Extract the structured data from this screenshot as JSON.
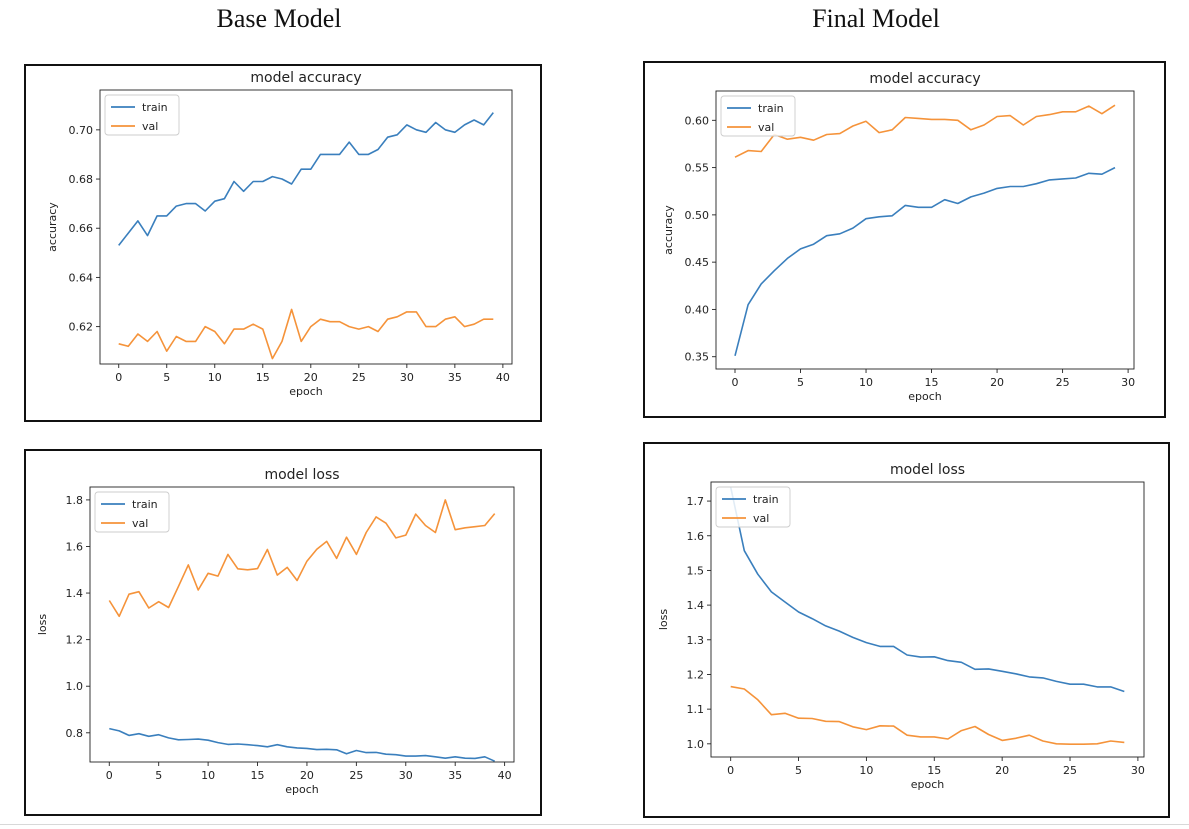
{
  "headers": {
    "left": "Base Model",
    "right": "Final Model"
  },
  "colors": {
    "train": "#3a7fbd",
    "val": "#f5933a"
  },
  "chart_data": [
    {
      "type": "line",
      "title": "model accuracy",
      "xlabel": "epoch",
      "ylabel": "accuracy",
      "xlim": [
        -1.95,
        40.95
      ],
      "ylim": [
        0.6048,
        0.7162
      ],
      "xticks": [
        0,
        5,
        10,
        15,
        20,
        25,
        30,
        35,
        40
      ],
      "yticks": [
        0.62,
        0.64,
        0.66,
        0.68,
        0.7
      ],
      "ytick_labels": [
        "0.62",
        "0.64",
        "0.66",
        "0.68",
        "0.70"
      ],
      "legend": "upper-left",
      "series": [
        {
          "name": "train",
          "x_start": 0,
          "values": [
            0.653,
            0.658,
            0.663,
            0.657,
            0.665,
            0.665,
            0.669,
            0.67,
            0.67,
            0.667,
            0.671,
            0.672,
            0.679,
            0.675,
            0.679,
            0.679,
            0.681,
            0.68,
            0.678,
            0.684,
            0.684,
            0.69,
            0.69,
            0.69,
            0.695,
            0.69,
            0.69,
            0.692,
            0.697,
            0.698,
            0.702,
            0.7,
            0.699,
            0.703,
            0.7,
            0.699,
            0.702,
            0.704,
            0.702,
            0.707
          ]
        },
        {
          "name": "val",
          "x_start": 0,
          "values": [
            0.613,
            0.612,
            0.617,
            0.614,
            0.618,
            0.61,
            0.616,
            0.614,
            0.614,
            0.62,
            0.618,
            0.613,
            0.619,
            0.619,
            0.621,
            0.619,
            0.607,
            0.614,
            0.627,
            0.614,
            0.62,
            0.623,
            0.622,
            0.622,
            0.62,
            0.619,
            0.62,
            0.618,
            0.623,
            0.624,
            0.626,
            0.626,
            0.62,
            0.62,
            0.623,
            0.624,
            0.62,
            0.621,
            0.623,
            0.623
          ]
        }
      ]
    },
    {
      "type": "line",
      "title": "model accuracy",
      "xlabel": "epoch",
      "ylabel": "accuracy",
      "xlim": [
        -1.45,
        30.45
      ],
      "ylim": [
        0.337,
        0.631
      ],
      "xticks": [
        0,
        5,
        10,
        15,
        20,
        25,
        30
      ],
      "yticks": [
        0.35,
        0.4,
        0.45,
        0.5,
        0.55,
        0.6
      ],
      "ytick_labels": [
        "0.35",
        "0.40",
        "0.45",
        "0.50",
        "0.55",
        "0.60"
      ],
      "legend": "upper-left",
      "series": [
        {
          "name": "train",
          "x_start": 0,
          "values": [
            0.351,
            0.405,
            0.427,
            0.441,
            0.454,
            0.464,
            0.469,
            0.478,
            0.48,
            0.486,
            0.496,
            0.498,
            0.499,
            0.51,
            0.508,
            0.508,
            0.516,
            0.512,
            0.519,
            0.523,
            0.528,
            0.53,
            0.53,
            0.533,
            0.537,
            0.538,
            0.539,
            0.544,
            0.543,
            0.55
          ]
        },
        {
          "name": "val",
          "x_start": 0,
          "values": [
            0.561,
            0.568,
            0.567,
            0.585,
            0.58,
            0.582,
            0.579,
            0.585,
            0.586,
            0.594,
            0.599,
            0.587,
            0.59,
            0.603,
            0.602,
            0.601,
            0.601,
            0.6,
            0.59,
            0.595,
            0.604,
            0.605,
            0.595,
            0.604,
            0.606,
            0.609,
            0.609,
            0.615,
            0.607,
            0.616
          ]
        }
      ]
    },
    {
      "type": "line",
      "title": "model loss",
      "xlabel": "epoch",
      "ylabel": "loss",
      "xlim": [
        -1.95,
        40.95
      ],
      "ylim": [
        0.6746,
        1.8554
      ],
      "xticks": [
        0,
        5,
        10,
        15,
        20,
        25,
        30,
        35,
        40
      ],
      "yticks": [
        0.8,
        1.0,
        1.2,
        1.4,
        1.6,
        1.8
      ],
      "ytick_labels": [
        "0.8",
        "1.0",
        "1.2",
        "1.4",
        "1.6",
        "1.8"
      ],
      "legend": "upper-left",
      "series": [
        {
          "name": "train",
          "x_start": 0,
          "values": [
            0.818,
            0.808,
            0.789,
            0.796,
            0.785,
            0.792,
            0.778,
            0.77,
            0.771,
            0.773,
            0.768,
            0.758,
            0.75,
            0.752,
            0.749,
            0.745,
            0.74,
            0.749,
            0.74,
            0.735,
            0.733,
            0.728,
            0.729,
            0.727,
            0.71,
            0.724,
            0.715,
            0.716,
            0.708,
            0.706,
            0.7,
            0.7,
            0.702,
            0.697,
            0.691,
            0.697,
            0.691,
            0.69,
            0.697,
            0.678
          ]
        },
        {
          "name": "val",
          "x_start": 0,
          "values": [
            1.368,
            1.3,
            1.395,
            1.406,
            1.336,
            1.363,
            1.338,
            1.429,
            1.521,
            1.413,
            1.485,
            1.473,
            1.566,
            1.504,
            1.5,
            1.505,
            1.587,
            1.477,
            1.51,
            1.454,
            1.537,
            1.588,
            1.622,
            1.549,
            1.64,
            1.566,
            1.66,
            1.727,
            1.7,
            1.637,
            1.649,
            1.739,
            1.69,
            1.66,
            1.8,
            1.672,
            1.68,
            1.685,
            1.69,
            1.741
          ]
        }
      ]
    },
    {
      "type": "line",
      "title": "model loss",
      "xlabel": "epoch",
      "ylabel": "loss",
      "xlim": [
        -1.45,
        30.45
      ],
      "ylim": [
        0.962,
        1.755
      ],
      "xticks": [
        0,
        5,
        10,
        15,
        20,
        25,
        30
      ],
      "yticks": [
        1.0,
        1.1,
        1.2,
        1.3,
        1.4,
        1.5,
        1.6,
        1.7
      ],
      "ytick_labels": [
        "1.0",
        "1.1",
        "1.2",
        "1.3",
        "1.4",
        "1.5",
        "1.6",
        "1.7"
      ],
      "legend": "upper-left",
      "series": [
        {
          "name": "train",
          "x_start": 0,
          "values": [
            1.74,
            1.557,
            1.489,
            1.438,
            1.409,
            1.38,
            1.361,
            1.34,
            1.325,
            1.307,
            1.292,
            1.281,
            1.281,
            1.256,
            1.25,
            1.251,
            1.24,
            1.235,
            1.215,
            1.216,
            1.209,
            1.202,
            1.193,
            1.19,
            1.18,
            1.172,
            1.172,
            1.164,
            1.164,
            1.151
          ]
        },
        {
          "name": "val",
          "x_start": 0,
          "values": [
            1.165,
            1.158,
            1.127,
            1.084,
            1.088,
            1.074,
            1.073,
            1.065,
            1.064,
            1.049,
            1.041,
            1.052,
            1.051,
            1.025,
            1.02,
            1.02,
            1.014,
            1.038,
            1.05,
            1.027,
            1.01,
            1.016,
            1.025,
            1.008,
            1.0,
            0.999,
            0.999,
            1.0,
            1.008,
            1.004
          ]
        }
      ]
    }
  ]
}
